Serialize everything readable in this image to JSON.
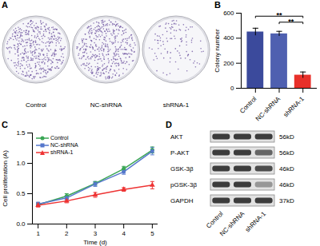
{
  "figure": {
    "A": {
      "label": "A",
      "type": "image",
      "samples": [
        "Control",
        "NC-shRNA",
        "shRNA-1"
      ]
    },
    "D": {
      "label": "D",
      "type": "western_blot",
      "lanes": [
        "Control",
        "NC-shRNA",
        "shRNA-1"
      ],
      "bands": [
        {
          "protein": "AKT",
          "size": "56kD",
          "intensity": [
            1,
            1,
            1
          ]
        },
        {
          "protein": "P-AKT",
          "size": "56kD",
          "intensity": [
            1,
            1,
            0.75
          ]
        },
        {
          "protein": "GSK-3β",
          "size": "46kD",
          "intensity": [
            1,
            1,
            0.9
          ]
        },
        {
          "protein": "pGSK-3β",
          "size": "46kD",
          "intensity": [
            1,
            1,
            0.45
          ]
        },
        {
          "protein": "GAPDH",
          "size": "37kD",
          "intensity": [
            1,
            1,
            1
          ]
        }
      ]
    }
  },
  "chart_data": [
    {
      "type": "bar",
      "title": "B",
      "categories": [
        "Control",
        "NC-shRNA",
        "shRNA-1"
      ],
      "values": [
        450,
        435,
        105
      ],
      "errors": [
        30,
        20,
        25
      ],
      "colors": [
        "#3b4a9c",
        "#4f60b0",
        "#e8302a"
      ],
      "ylabel": "Colony number",
      "ylim": [
        0,
        600
      ],
      "yticks": [
        0,
        200,
        400,
        600
      ],
      "annotations": [
        {
          "from": "Control",
          "to": "shRNA-1",
          "label": "**"
        },
        {
          "from": "NC-shRNA",
          "to": "shRNA-1",
          "label": "**"
        }
      ]
    },
    {
      "type": "line",
      "title": "C",
      "x": [
        1,
        2,
        3,
        4,
        5
      ],
      "xlabel": "Time (d)",
      "ylabel": "Cell proliferation (A)",
      "xlim": [
        0.8,
        5.2
      ],
      "xticks": [
        1,
        2,
        3,
        4,
        5
      ],
      "ylim": [
        0,
        1.5
      ],
      "yticks": [
        {
          "value": 0,
          "label": "0.0"
        },
        {
          "value": 0.5,
          "label": "0.5"
        },
        {
          "value": 1,
          "label": "1.0"
        },
        {
          "value": 1.5,
          "label": "1.5"
        }
      ],
      "legend": "upper left",
      "series": [
        {
          "name": "Control",
          "color": "#3aa655",
          "marker": "circle",
          "values": [
            0.32,
            0.46,
            0.67,
            0.91,
            1.22
          ],
          "errors": [
            0.03,
            0.04,
            0.03,
            0.04,
            0.05
          ]
        },
        {
          "name": "NC-shRNA",
          "color": "#5577cc",
          "marker": "square",
          "values": [
            0.33,
            0.43,
            0.66,
            0.86,
            1.2
          ],
          "errors": [
            0.03,
            0.03,
            0.04,
            0.04,
            0.06
          ]
        },
        {
          "name": "shRNA-1",
          "color": "#ee3333",
          "marker": "triangle",
          "values": [
            0.31,
            0.38,
            0.48,
            0.57,
            0.64
          ],
          "errors": [
            0.03,
            0.03,
            0.04,
            0.03,
            0.06
          ]
        }
      ]
    }
  ]
}
